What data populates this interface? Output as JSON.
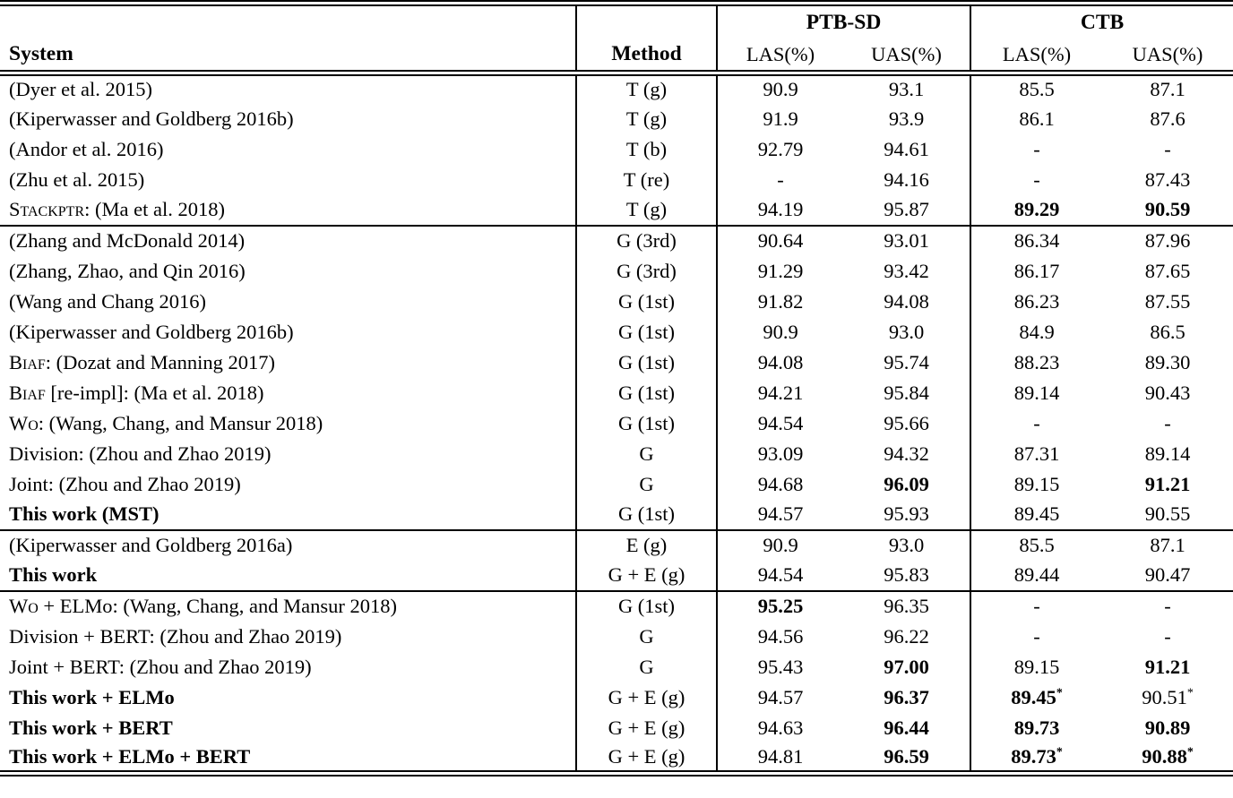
{
  "page": {
    "background": "#ffffff",
    "text_color": "#000000"
  },
  "table": {
    "header": {
      "system": "System",
      "method": "Method",
      "groups": [
        {
          "label": "PTB-SD",
          "sub": [
            "LAS(%)",
            "UAS(%)"
          ]
        },
        {
          "label": "CTB",
          "sub": [
            "LAS(%)",
            "UAS(%)"
          ]
        }
      ]
    },
    "value_column_names": [
      "ptb-las",
      "ptb-uas",
      "ctb-las",
      "ctb-uas"
    ],
    "sections": [
      {
        "rows": [
          {
            "sc": "",
            "label": "(Dyer et al. 2015)",
            "bold": false,
            "method": "T (g)",
            "cells": [
              {
                "t": "90.9"
              },
              {
                "t": "93.1"
              },
              {
                "t": "85.5"
              },
              {
                "t": "87.1"
              }
            ]
          },
          {
            "sc": "",
            "label": "(Kiperwasser and Goldberg 2016b)",
            "bold": false,
            "method": "T (g)",
            "cells": [
              {
                "t": "91.9"
              },
              {
                "t": "93.9"
              },
              {
                "t": "86.1"
              },
              {
                "t": "87.6"
              }
            ]
          },
          {
            "sc": "",
            "label": "(Andor et al. 2016)",
            "bold": false,
            "method": "T (b)",
            "cells": [
              {
                "t": "92.79"
              },
              {
                "t": "94.61"
              },
              {
                "t": "-"
              },
              {
                "t": "-"
              }
            ]
          },
          {
            "sc": "",
            "label": "(Zhu et al. 2015)",
            "bold": false,
            "method": "T (re)",
            "cells": [
              {
                "t": "-"
              },
              {
                "t": "94.16"
              },
              {
                "t": "-"
              },
              {
                "t": "87.43"
              }
            ]
          },
          {
            "sc": "Stackptr:",
            "label": " (Ma et al. 2018)",
            "bold": false,
            "method": "T (g)",
            "cells": [
              {
                "t": "94.19"
              },
              {
                "t": "95.87"
              },
              {
                "t": "89.29",
                "b": true
              },
              {
                "t": "90.59",
                "b": true
              }
            ]
          }
        ]
      },
      {
        "rows": [
          {
            "sc": "",
            "label": "(Zhang and McDonald 2014)",
            "bold": false,
            "method": "G (3rd)",
            "cells": [
              {
                "t": "90.64"
              },
              {
                "t": "93.01"
              },
              {
                "t": "86.34"
              },
              {
                "t": "87.96"
              }
            ]
          },
          {
            "sc": "",
            "label": "(Zhang, Zhao, and Qin 2016)",
            "bold": false,
            "method": "G (3rd)",
            "cells": [
              {
                "t": "91.29"
              },
              {
                "t": "93.42"
              },
              {
                "t": "86.17"
              },
              {
                "t": "87.65"
              }
            ]
          },
          {
            "sc": "",
            "label": "(Wang and Chang 2016)",
            "bold": false,
            "method": "G (1st)",
            "cells": [
              {
                "t": "91.82"
              },
              {
                "t": "94.08"
              },
              {
                "t": "86.23"
              },
              {
                "t": "87.55"
              }
            ]
          },
          {
            "sc": "",
            "label": "(Kiperwasser and Goldberg 2016b)",
            "bold": false,
            "method": "G (1st)",
            "cells": [
              {
                "t": "90.9"
              },
              {
                "t": "93.0"
              },
              {
                "t": "84.9"
              },
              {
                "t": "86.5"
              }
            ]
          },
          {
            "sc": "Biaf:",
            "label": " (Dozat and Manning 2017)",
            "bold": false,
            "method": "G (1st)",
            "cells": [
              {
                "t": "94.08"
              },
              {
                "t": "95.74"
              },
              {
                "t": "88.23"
              },
              {
                "t": "89.30"
              }
            ]
          },
          {
            "sc": "Biaf",
            "label": " [re-impl]: (Ma et al. 2018)",
            "bold": false,
            "method": "G (1st)",
            "cells": [
              {
                "t": "94.21"
              },
              {
                "t": "95.84"
              },
              {
                "t": "89.14"
              },
              {
                "t": "90.43"
              }
            ]
          },
          {
            "sc": "Wo:",
            "label": " (Wang, Chang, and Mansur 2018)",
            "bold": false,
            "method": "G (1st)",
            "cells": [
              {
                "t": "94.54"
              },
              {
                "t": "95.66"
              },
              {
                "t": "-"
              },
              {
                "t": "-"
              }
            ]
          },
          {
            "sc": "",
            "label": "Division: (Zhou and Zhao 2019)",
            "bold": false,
            "method": "G",
            "cells": [
              {
                "t": "93.09"
              },
              {
                "t": "94.32"
              },
              {
                "t": "87.31"
              },
              {
                "t": "89.14"
              }
            ]
          },
          {
            "sc": "",
            "label": "Joint: (Zhou and Zhao 2019)",
            "bold": false,
            "method": "G",
            "cells": [
              {
                "t": "94.68"
              },
              {
                "t": "96.09",
                "b": true
              },
              {
                "t": "89.15"
              },
              {
                "t": "91.21",
                "b": true
              }
            ]
          },
          {
            "sc": "",
            "label": "This work (MST)",
            "bold": true,
            "method": "G (1st)",
            "cells": [
              {
                "t": "94.57"
              },
              {
                "t": "95.93"
              },
              {
                "t": "89.45"
              },
              {
                "t": "90.55"
              }
            ]
          }
        ]
      },
      {
        "rows": [
          {
            "sc": "",
            "label": "(Kiperwasser and Goldberg 2016a)",
            "bold": false,
            "method": "E (g)",
            "cells": [
              {
                "t": "90.9"
              },
              {
                "t": "93.0"
              },
              {
                "t": "85.5"
              },
              {
                "t": "87.1"
              }
            ]
          },
          {
            "sc": "",
            "label": "This work",
            "bold": true,
            "method": "G + E (g)",
            "cells": [
              {
                "t": "94.54"
              },
              {
                "t": "95.83"
              },
              {
                "t": "89.44"
              },
              {
                "t": "90.47"
              }
            ]
          }
        ]
      },
      {
        "rows": [
          {
            "sc": "Wo",
            "label": " + ELMo: (Wang, Chang, and Mansur 2018)",
            "bold": false,
            "method": "G (1st)",
            "cells": [
              {
                "t": "95.25",
                "b": true
              },
              {
                "t": "96.35"
              },
              {
                "t": "-"
              },
              {
                "t": "-"
              }
            ]
          },
          {
            "sc": "",
            "label": "Division + BERT: (Zhou and Zhao 2019)",
            "bold": false,
            "method": "G",
            "cells": [
              {
                "t": "94.56"
              },
              {
                "t": "96.22"
              },
              {
                "t": "-"
              },
              {
                "t": "-"
              }
            ]
          },
          {
            "sc": "",
            "label": "Joint + BERT: (Zhou and Zhao 2019)",
            "bold": false,
            "method": "G",
            "cells": [
              {
                "t": "95.43"
              },
              {
                "t": "97.00",
                "b": true
              },
              {
                "t": "89.15"
              },
              {
                "t": "91.21",
                "b": true
              }
            ]
          },
          {
            "sc": "",
            "label": "This work + ELMo",
            "bold": true,
            "method": "G + E (g)",
            "cells": [
              {
                "t": "94.57"
              },
              {
                "t": "96.37",
                "b": true
              },
              {
                "t": "89.45",
                "b": true,
                "sup": "*"
              },
              {
                "t": "90.51",
                "sup": "*"
              }
            ]
          },
          {
            "sc": "",
            "label": "This work + BERT",
            "bold": true,
            "method": "G + E (g)",
            "cells": [
              {
                "t": "94.63"
              },
              {
                "t": "96.44",
                "b": true
              },
              {
                "t": "89.73",
                "b": true
              },
              {
                "t": "90.89",
                "b": true
              }
            ]
          },
          {
            "sc": "",
            "label": "This work + ELMo + BERT",
            "bold": true,
            "method": "G + E (g)",
            "cells": [
              {
                "t": "94.81"
              },
              {
                "t": "96.59",
                "b": true
              },
              {
                "t": "89.73",
                "b": true,
                "sup": "*"
              },
              {
                "t": "90.88",
                "b": true,
                "sup": "*"
              }
            ]
          }
        ]
      }
    ]
  }
}
